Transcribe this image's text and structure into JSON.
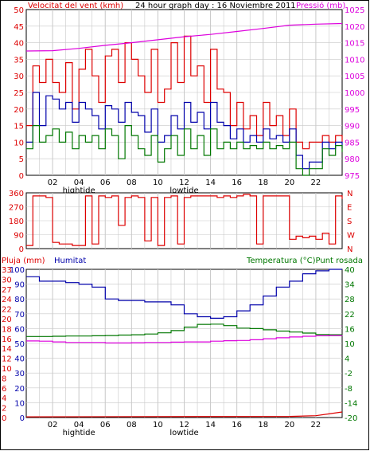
{
  "header": {
    "left_label": "Velocitat del vent (kmh)",
    "title": "24 hour graph day : 16 Noviembre 2011",
    "right_label": "Pressió (mb)"
  },
  "colors": {
    "wind": "#dd0000",
    "gust_avg": "#0000aa",
    "wind_min": "#007700",
    "pressure": "#dd00dd",
    "direction": "#dd0000",
    "humidity": "#0000aa",
    "temperature": "#007700",
    "dewpoint": "#dd00dd",
    "rain": "#dd0000",
    "grid": "#c8c8c8"
  },
  "time_axis": {
    "ticks": [
      "02",
      "04",
      "06",
      "08",
      "10",
      "12",
      "14",
      "16",
      "18",
      "20",
      "22"
    ],
    "tide_labels": [
      {
        "hour": 4,
        "text": "hightide"
      },
      {
        "hour": 12,
        "text": "lowtide"
      }
    ]
  },
  "bottom_header": {
    "left_label": "Pluja (mm)",
    "mid_label": "Humitat",
    "right_label": "Temperatura (°C)Punt rosada"
  },
  "chart_data": [
    {
      "type": "line",
      "xlim": [
        0,
        24
      ],
      "ylim": [
        0,
        50
      ],
      "y_ticks": [
        0,
        5,
        10,
        15,
        20,
        25,
        30,
        35,
        40,
        45,
        50
      ],
      "y2lim": [
        975,
        1025
      ],
      "y2_ticks": [
        975,
        980,
        985,
        990,
        995,
        1000,
        1005,
        1010,
        1015,
        1020,
        1025
      ],
      "series": [
        {
          "key": "gust",
          "x": [
            0,
            0.5,
            1,
            1.5,
            2,
            2.5,
            3,
            3.5,
            4,
            4.5,
            5,
            5.5,
            6,
            6.5,
            7,
            7.5,
            8,
            8.5,
            9,
            9.5,
            10,
            10.5,
            11,
            11.5,
            12,
            12.5,
            13,
            13.5,
            14,
            14.5,
            15,
            15.5,
            16,
            16.5,
            17,
            17.5,
            18,
            18.5,
            19,
            19.5,
            20,
            20.5,
            21,
            21.5,
            22,
            22.5,
            23,
            23.5,
            24
          ],
          "values": [
            15,
            33,
            28,
            35,
            28,
            25,
            34,
            20,
            32,
            38,
            30,
            22,
            36,
            38,
            28,
            40,
            35,
            30,
            25,
            38,
            22,
            26,
            40,
            28,
            42,
            30,
            33,
            22,
            38,
            26,
            25,
            15,
            22,
            14,
            18,
            12,
            22,
            15,
            18,
            12,
            20,
            10,
            8,
            10,
            10,
            12,
            10,
            12,
            10
          ]
        },
        {
          "key": "average",
          "x": [
            0,
            0.5,
            1,
            1.5,
            2,
            2.5,
            3,
            3.5,
            4,
            4.5,
            5,
            5.5,
            6,
            6.5,
            7,
            7.5,
            8,
            8.5,
            9,
            9.5,
            10,
            10.5,
            11,
            11.5,
            12,
            12.5,
            13,
            13.5,
            14,
            14.5,
            15,
            15.5,
            16,
            16.5,
            17,
            17.5,
            18,
            18.5,
            19,
            19.5,
            20,
            20.5,
            21,
            21.5,
            22,
            22.5,
            23,
            23.5,
            24
          ],
          "values": [
            10,
            25,
            15,
            24,
            23,
            20,
            22,
            16,
            22,
            20,
            18,
            14,
            21,
            20,
            16,
            22,
            19,
            18,
            13,
            20,
            10,
            12,
            18,
            14,
            22,
            16,
            19,
            14,
            22,
            16,
            15,
            11,
            14,
            10,
            12,
            10,
            14,
            11,
            12,
            10,
            14,
            6,
            2,
            4,
            4,
            10,
            8,
            10,
            8
          ]
        },
        {
          "key": "minimum",
          "x": [
            0,
            0.5,
            1,
            1.5,
            2,
            2.5,
            3,
            3.5,
            4,
            4.5,
            5,
            5.5,
            6,
            6.5,
            7,
            7.5,
            8,
            8.5,
            9,
            9.5,
            10,
            10.5,
            11,
            11.5,
            12,
            12.5,
            13,
            13.5,
            14,
            14.5,
            15,
            15.5,
            16,
            16.5,
            17,
            17.5,
            18,
            18.5,
            19,
            19.5,
            20,
            20.5,
            21,
            21.5,
            22,
            22.5,
            23,
            23.5,
            24
          ],
          "values": [
            8,
            15,
            10,
            12,
            14,
            10,
            13,
            8,
            12,
            10,
            12,
            8,
            14,
            12,
            5,
            15,
            12,
            8,
            6,
            12,
            4,
            8,
            12,
            6,
            14,
            8,
            12,
            6,
            14,
            8,
            10,
            8,
            10,
            8,
            9,
            8,
            10,
            8,
            9,
            8,
            10,
            2,
            0,
            2,
            2,
            8,
            6,
            9,
            7
          ]
        },
        {
          "key": "pressure",
          "axis": "right",
          "x": [
            0,
            2,
            4,
            6,
            8,
            10,
            12,
            14,
            16,
            18,
            20,
            22,
            24
          ],
          "values": [
            1012.5,
            1012.6,
            1013.3,
            1014.2,
            1015.0,
            1015.9,
            1016.8,
            1017.5,
            1018.4,
            1019.3,
            1020.3,
            1020.6,
            1020.8
          ]
        }
      ]
    },
    {
      "type": "line",
      "xlim": [
        0,
        24
      ],
      "ylim": [
        0,
        360
      ],
      "y_ticks": [
        0,
        90,
        180,
        270,
        360
      ],
      "right_labels": [
        "N",
        "W",
        "S",
        "E",
        "N"
      ],
      "series": [
        {
          "key": "direction",
          "x": [
            0,
            0.5,
            1,
            1.5,
            2,
            2.5,
            3,
            3.5,
            4,
            4.5,
            5,
            5.5,
            6,
            6.5,
            7,
            7.5,
            8,
            8.5,
            9,
            9.5,
            10,
            10.5,
            11,
            11.5,
            12,
            12.5,
            13,
            13.5,
            14,
            14.5,
            15,
            15.5,
            16,
            16.5,
            17,
            17.5,
            18,
            18.5,
            19,
            19.5,
            20,
            20.5,
            21,
            21.5,
            22,
            22.5,
            23,
            23.5,
            24
          ],
          "values": [
            20,
            340,
            340,
            330,
            40,
            30,
            30,
            20,
            20,
            340,
            30,
            340,
            330,
            340,
            150,
            330,
            340,
            330,
            50,
            330,
            20,
            330,
            340,
            30,
            330,
            340,
            340,
            340,
            340,
            330,
            340,
            330,
            340,
            350,
            340,
            30,
            340,
            340,
            340,
            340,
            60,
            80,
            70,
            80,
            60,
            100,
            30,
            340,
            320
          ]
        }
      ]
    },
    {
      "type": "line",
      "xlim": [
        0,
        24
      ],
      "ylim": [
        0,
        100
      ],
      "y_ticks": [
        0,
        10,
        20,
        30,
        40,
        50,
        60,
        70,
        80,
        90,
        100
      ],
      "rain_ticks": [
        0,
        2,
        4,
        6,
        8,
        10,
        12,
        14,
        16,
        18,
        20,
        22,
        24,
        27,
        30,
        33
      ],
      "y2lim": [
        -20,
        40
      ],
      "y2_ticks": [
        -20,
        -14,
        -8,
        -2,
        4,
        10,
        16,
        22,
        28,
        34,
        40
      ],
      "series": [
        {
          "key": "humidity",
          "x": [
            0,
            1,
            2,
            3,
            4,
            5,
            6,
            7,
            8,
            9,
            10,
            11,
            12,
            13,
            14,
            15,
            16,
            17,
            18,
            19,
            20,
            21,
            22,
            23,
            24
          ],
          "values": [
            95,
            92,
            92,
            91,
            90,
            88,
            80,
            79,
            79,
            78,
            78,
            76,
            70,
            68,
            67,
            68,
            72,
            76,
            82,
            88,
            92,
            97,
            99,
            100,
            100
          ]
        },
        {
          "key": "temperature",
          "axis": "right",
          "x": [
            0,
            1,
            2,
            3,
            4,
            5,
            6,
            7,
            8,
            9,
            10,
            11,
            12,
            13,
            14,
            15,
            16,
            17,
            18,
            19,
            20,
            21,
            22,
            23,
            24
          ],
          "values": [
            12.8,
            12.8,
            12.9,
            13.0,
            13.0,
            13.1,
            13.2,
            13.4,
            13.5,
            13.8,
            14.3,
            15.2,
            16.6,
            17.7,
            17.8,
            17.2,
            16.2,
            16.0,
            15.5,
            15.0,
            14.6,
            14.2,
            13.6,
            13.5,
            13.3
          ]
        },
        {
          "key": "dewpoint",
          "axis": "right",
          "x": [
            0,
            1,
            2,
            3,
            4,
            5,
            6,
            7,
            8,
            9,
            10,
            11,
            12,
            13,
            14,
            15,
            16,
            17,
            18,
            19,
            20,
            21,
            22,
            23,
            24
          ],
          "values": [
            11.0,
            10.9,
            10.6,
            10.4,
            10.4,
            10.4,
            10.2,
            10.2,
            10.3,
            10.4,
            10.4,
            10.5,
            10.6,
            10.6,
            10.9,
            11.1,
            11.2,
            11.5,
            11.9,
            12.3,
            12.6,
            12.9,
            13.1,
            13.2,
            13.4
          ]
        },
        {
          "key": "rain",
          "x": [
            0,
            20,
            22,
            23,
            24
          ],
          "values": [
            0.2,
            0.3,
            0.5,
            1.0,
            1.5
          ]
        }
      ]
    }
  ]
}
